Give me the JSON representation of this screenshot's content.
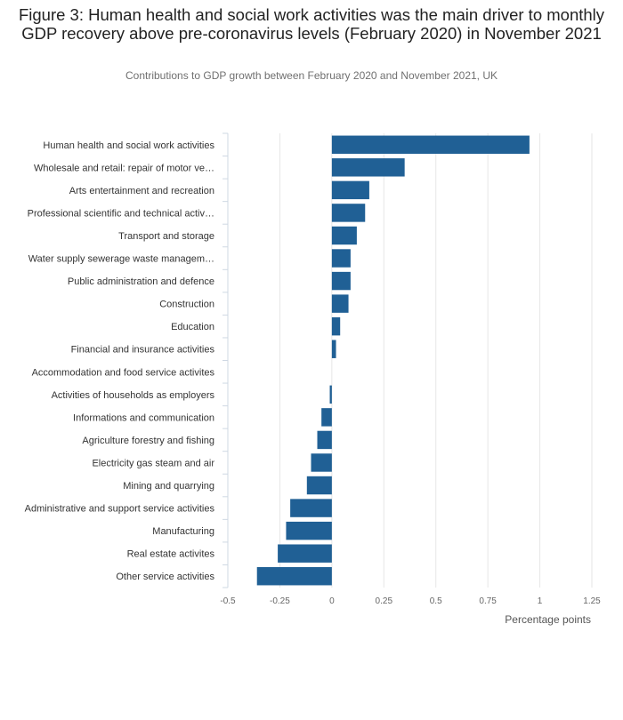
{
  "title": "Figure 3: Human health and social work activities was the main driver to monthly GDP recovery above pre-coronavirus levels (February 2020) in November 2021",
  "subtitle": "Contributions to GDP growth between February 2020 and November 2021, UK",
  "chart_data": {
    "type": "bar",
    "orientation": "horizontal",
    "categories": [
      "Human health and social work activities",
      "Wholesale and retail: repair of motor ve…",
      "Arts entertainment and recreation",
      "Professional scientific and technical activ…",
      "Transport and storage",
      "Water supply sewerage waste managem…",
      "Public administration and defence",
      "Construction",
      "Education",
      "Financial and insurance activities",
      "Accommodation and food service activites",
      "Activities of households as employers",
      "Informations and communication",
      "Agriculture forestry and fishing",
      "Electricity gas steam and air",
      "Mining and quarrying",
      "Administrative and support service activities",
      "Manufacturing",
      "Real estate activites",
      "Other service activities"
    ],
    "values": [
      0.95,
      0.35,
      0.18,
      0.16,
      0.12,
      0.09,
      0.09,
      0.08,
      0.04,
      0.02,
      0.0,
      -0.01,
      -0.05,
      -0.07,
      -0.1,
      -0.12,
      -0.2,
      -0.22,
      -0.26,
      -0.36
    ],
    "xlabel": "Percentage points",
    "xlim": [
      -0.5,
      1.25
    ],
    "xticks": [
      "-0.5",
      "-0.25",
      "0",
      "0.25",
      "0.5",
      "0.75",
      "1",
      "1.25"
    ],
    "grid": true,
    "bar_color": "#206095"
  }
}
